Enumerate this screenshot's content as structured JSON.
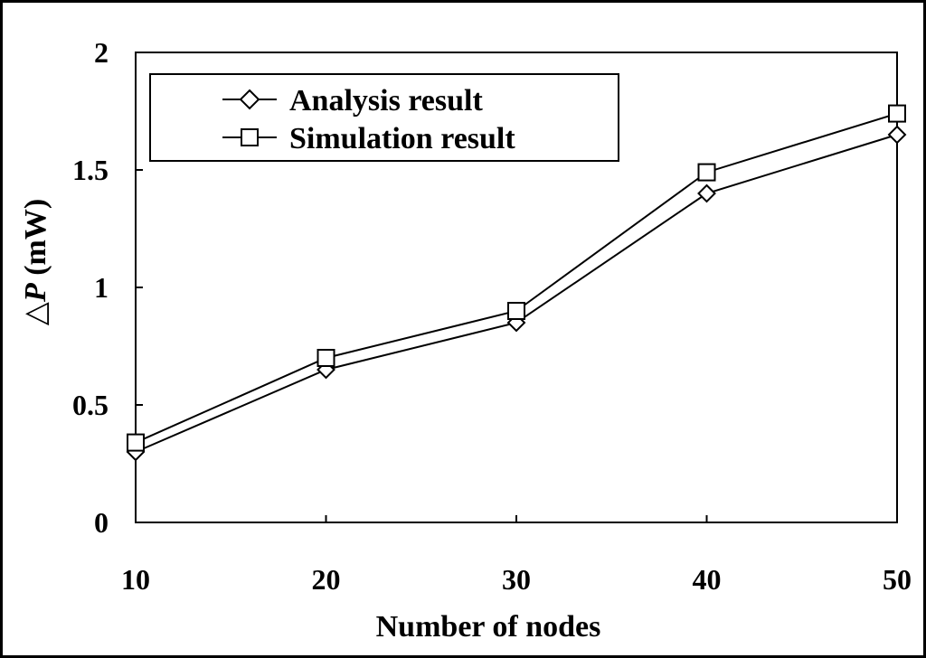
{
  "chart_data": {
    "type": "line",
    "x": [
      10,
      20,
      30,
      40,
      50
    ],
    "series": [
      {
        "name": "Analysis result",
        "marker": "diamond",
        "values": [
          0.3,
          0.65,
          0.85,
          1.4,
          1.65
        ]
      },
      {
        "name": "Simulation result",
        "marker": "square",
        "values": [
          0.34,
          0.7,
          0.9,
          1.49,
          1.74
        ]
      }
    ],
    "xlabel": "Number of nodes",
    "ylabel_symbol": "△",
    "ylabel_var": "P",
    "ylabel_unit": " (mW)",
    "xlim": [
      10,
      50
    ],
    "ylim": [
      0,
      2
    ],
    "xticks": [
      "10",
      "20",
      "30",
      "40",
      "50"
    ],
    "yticks": [
      "0",
      "0.5",
      "1",
      "1.5",
      "2"
    ],
    "legend_position": "top-left",
    "grid": false
  }
}
